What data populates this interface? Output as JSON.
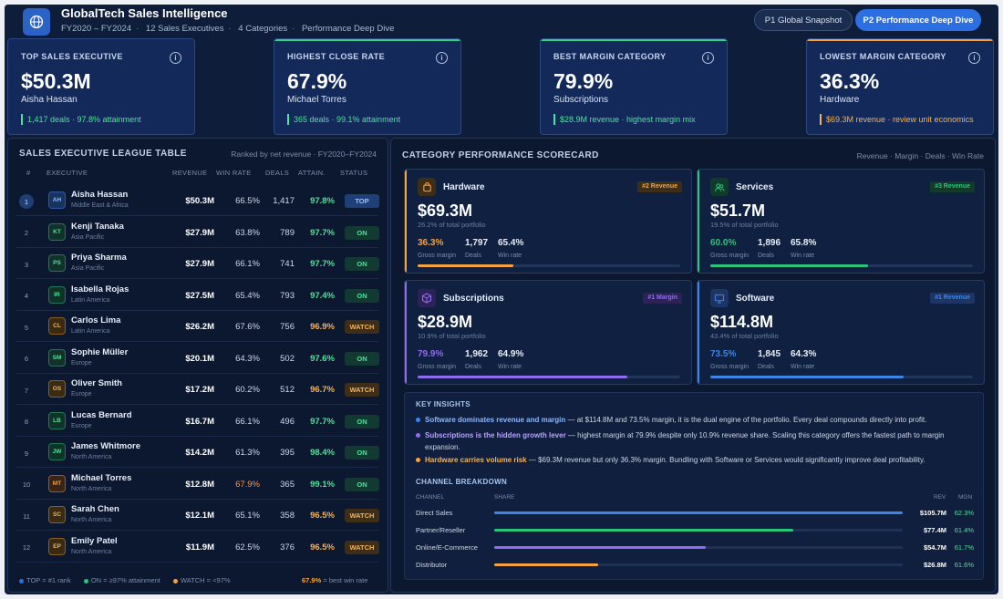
{
  "header": {
    "title": "GlobalTech Sales Intelligence",
    "meta": [
      "FY2020 – FY2024",
      "12 Sales Executives",
      "4 Categories",
      "Performance Deep Dive"
    ],
    "pages": [
      {
        "label": "P1 Global Snapshot",
        "active": false
      },
      {
        "label": "P2 Performance Deep Dive",
        "active": true
      }
    ]
  },
  "kpis": [
    {
      "label": "TOP SALES EXECUTIVE",
      "value": "$50.3M",
      "who": "Aisha Hassan",
      "note": "1,417 deals · 97.8% attainment",
      "color": "#4ee39a",
      "accent": "#13295a"
    },
    {
      "label": "HIGHEST CLOSE RATE",
      "value": "67.9%",
      "who": "Michael Torres",
      "note": "365 deals · 99.1% attainment",
      "color": "#4ee39a",
      "accent": "#2bd48a"
    },
    {
      "label": "BEST MARGIN CATEGORY",
      "value": "79.9%",
      "who": "Subscriptions",
      "note": "$28.9M revenue · highest margin mix",
      "color": "#4ee39a",
      "accent": "#2bd48a"
    },
    {
      "label": "LOWEST MARGIN CATEGORY",
      "value": "36.3%",
      "who": "Hardware",
      "note": "$69.3M revenue · review unit economics",
      "color": "#f4b35a",
      "accent": "#f4a340"
    }
  ],
  "league": {
    "title": "SALES EXECUTIVE LEAGUE TABLE",
    "subtitle": "Ranked by net revenue · FY2020–FY2024",
    "columns": [
      "#",
      "EXECUTIVE",
      "REVENUE",
      "WIN RATE",
      "DEALS",
      "ATTAIN.",
      "STATUS"
    ],
    "rows": [
      {
        "rank": "1",
        "initials": "AH",
        "name": "Aisha Hassan",
        "region": "Middle East & Africa",
        "revenue": "$50.3M",
        "win": "66.5%",
        "deals": "1,417",
        "att": "97.8%",
        "status": "TOP",
        "tone": "blue"
      },
      {
        "rank": "2",
        "initials": "KT",
        "name": "Kenji Tanaka",
        "region": "Asia Pacific",
        "revenue": "$27.9M",
        "win": "63.8%",
        "deals": "789",
        "att": "97.7%",
        "status": "ON",
        "tone": "green"
      },
      {
        "rank": "3",
        "initials": "PS",
        "name": "Priya Sharma",
        "region": "Asia Pacific",
        "revenue": "$27.9M",
        "win": "66.1%",
        "deals": "741",
        "att": "97.7%",
        "status": "ON",
        "tone": "green"
      },
      {
        "rank": "4",
        "initials": "IR",
        "name": "Isabella Rojas",
        "region": "Latin America",
        "revenue": "$27.5M",
        "win": "65.4%",
        "deals": "793",
        "att": "97.4%",
        "status": "ON",
        "tone": "green"
      },
      {
        "rank": "5",
        "initials": "CL",
        "name": "Carlos Lima",
        "region": "Latin America",
        "revenue": "$26.2M",
        "win": "67.6%",
        "deals": "756",
        "att": "96.9%",
        "status": "WATCH",
        "tone": "amber"
      },
      {
        "rank": "6",
        "initials": "SM",
        "name": "Sophie Müller",
        "region": "Europe",
        "revenue": "$20.1M",
        "win": "64.3%",
        "deals": "502",
        "att": "97.6%",
        "status": "ON",
        "tone": "green"
      },
      {
        "rank": "7",
        "initials": "OS",
        "name": "Oliver Smith",
        "region": "Europe",
        "revenue": "$17.2M",
        "win": "60.2%",
        "deals": "512",
        "att": "96.7%",
        "status": "WATCH",
        "tone": "amber"
      },
      {
        "rank": "8",
        "initials": "LB",
        "name": "Lucas Bernard",
        "region": "Europe",
        "revenue": "$16.7M",
        "win": "66.1%",
        "deals": "496",
        "att": "97.7%",
        "status": "ON",
        "tone": "green"
      },
      {
        "rank": "9",
        "initials": "JW",
        "name": "James Whitmore",
        "region": "North America",
        "revenue": "$14.2M",
        "win": "61.3%",
        "deals": "395",
        "att": "98.4%",
        "status": "ON",
        "tone": "green"
      },
      {
        "rank": "10",
        "initials": "MT",
        "name": "Michael Torres",
        "region": "North America",
        "revenue": "$12.8M",
        "win": "67.9%",
        "deals": "365",
        "att": "99.1%",
        "status": "ON",
        "tone": "orange"
      },
      {
        "rank": "11",
        "initials": "SC",
        "name": "Sarah Chen",
        "region": "North America",
        "revenue": "$12.1M",
        "win": "65.1%",
        "deals": "358",
        "att": "96.5%",
        "status": "WATCH",
        "tone": "amber"
      },
      {
        "rank": "12",
        "initials": "EP",
        "name": "Emily Patel",
        "region": "North America",
        "revenue": "$11.9M",
        "win": "62.5%",
        "deals": "376",
        "att": "96.5%",
        "status": "WATCH",
        "tone": "amber"
      }
    ],
    "best_win": "67.9%",
    "legend": {
      "top": "TOP = #1 rank",
      "on": "ON = ≥97% attainment",
      "watch": "WATCH = <97%",
      "best": "= best win rate"
    }
  },
  "scorecard": {
    "title": "CATEGORY PERFORMANCE SCORECARD",
    "subtitle": "Revenue · Margin · Deals · Win Rate",
    "metric_labels": [
      "Gross margin",
      "Deals",
      "Win rate"
    ],
    "cards": [
      {
        "name": "Hardware",
        "tag": "#2 Revenue",
        "revenue": "$69.3M",
        "share": "26.2% of total portfolio",
        "margin": "36.3%",
        "deals": "1,797",
        "win": "65.4%",
        "margin_frac": 0.363,
        "color": "#f4a340",
        "tagbg": "#3e2e18",
        "icon": "bag-icon"
      },
      {
        "name": "Services",
        "tag": "#3 Revenue",
        "revenue": "$51.7M",
        "share": "19.5% of total portfolio",
        "margin": "60.0%",
        "deals": "1,896",
        "win": "65.8%",
        "margin_frac": 0.6,
        "color": "#2bc47a",
        "tagbg": "#123a2a",
        "icon": "people-icon"
      },
      {
        "name": "Subscriptions",
        "tag": "#1 Margin",
        "revenue": "$28.9M",
        "share": "10.9% of total portfolio",
        "margin": "79.9%",
        "deals": "1,962",
        "win": "64.9%",
        "margin_frac": 0.799,
        "color": "#8f6cf0",
        "tagbg": "#2c2258",
        "icon": "box-icon"
      },
      {
        "name": "Software",
        "tag": "#1 Revenue",
        "revenue": "$114.8M",
        "share": "43.4% of total portfolio",
        "margin": "73.5%",
        "deals": "1,845",
        "win": "64.3%",
        "margin_frac": 0.735,
        "color": "#3d86e8",
        "tagbg": "#1c3564",
        "icon": "monitor-icon"
      }
    ]
  },
  "insights": {
    "title": "KEY INSIGHTS",
    "items": [
      {
        "head": "Software dominates revenue and margin",
        "body": " — at $114.8M and 73.5% margin, it is the dual engine of the portfolio. Every deal compounds directly into profit.",
        "color": "#3d86e8",
        "headcolor": "#8cb8ff"
      },
      {
        "head": "Subscriptions is the hidden growth lever",
        "body": " — highest margin at 79.9% despite only 10.9% revenue share. Scaling this category offers the fastest path to margin expansion.",
        "color": "#8f6cf0",
        "headcolor": "#b9a2ff"
      },
      {
        "head": "Hardware carries volume risk",
        "body": " — $69.3M revenue but only 36.3% margin. Bundling with Software or Services would significantly improve deal profitability.",
        "color": "#f4a340",
        "headcolor": "#f4b35a"
      }
    ]
  },
  "channels": {
    "title": "CHANNEL BREAKDOWN",
    "columns": [
      "CHANNEL",
      "SHARE",
      "REV",
      "MGN"
    ],
    "rows": [
      {
        "name": "Direct Sales",
        "rev": "$105.7M",
        "mgn": "62.3%",
        "frac": 1.0,
        "color": "#3d86e8"
      },
      {
        "name": "Partner/Reseller",
        "rev": "$77.4M",
        "mgn": "61.4%",
        "frac": 0.732,
        "color": "#2bc47a"
      },
      {
        "name": "Online/E-Commerce",
        "rev": "$54.7M",
        "mgn": "61.7%",
        "frac": 0.517,
        "color": "#8f6cf0"
      },
      {
        "name": "Distributor",
        "rev": "$26.8M",
        "mgn": "61.6%",
        "frac": 0.254,
        "color": "#f4a340"
      }
    ]
  }
}
